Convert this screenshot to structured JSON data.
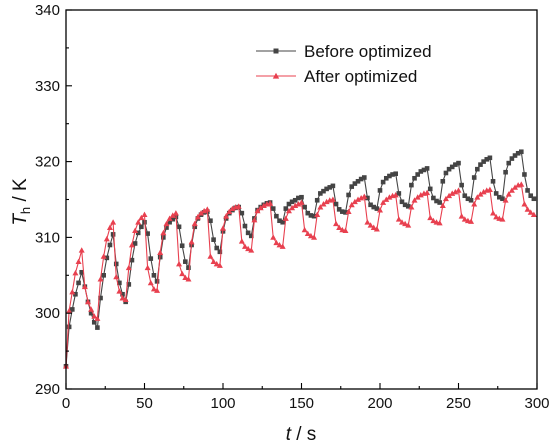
{
  "chart_data": {
    "type": "line",
    "xlabel": {
      "var": "t",
      "unit": " / s"
    },
    "ylabel": {
      "var": "T",
      "sub": "h",
      "unit": " / K"
    },
    "xlim": [
      0,
      300
    ],
    "ylim": [
      290,
      340
    ],
    "xticks": [
      0,
      50,
      100,
      150,
      200,
      250,
      300
    ],
    "yticks": [
      290,
      300,
      310,
      320,
      330,
      340
    ],
    "grid": false,
    "legend_position": "top-right",
    "series": [
      {
        "name": "Before optimized",
        "color": "#444444",
        "marker": "square",
        "x": [
          0,
          2,
          4,
          6,
          8,
          10,
          12,
          14,
          16,
          18,
          20,
          22,
          24,
          26,
          28,
          30,
          32,
          34,
          36,
          38,
          40,
          42,
          44,
          46,
          48,
          50,
          52,
          54,
          56,
          58,
          60,
          62,
          64,
          66,
          68,
          70,
          72,
          74,
          76,
          78,
          80,
          82,
          84,
          86,
          88,
          90,
          92,
          94,
          96,
          98,
          100,
          102,
          104,
          106,
          108,
          110,
          112,
          114,
          116,
          118,
          120,
          122,
          124,
          126,
          128,
          130,
          132,
          134,
          136,
          138,
          140,
          142,
          144,
          146,
          148,
          150,
          152,
          154,
          156,
          158,
          160,
          162,
          164,
          166,
          168,
          170,
          172,
          174,
          176,
          178,
          180,
          182,
          184,
          186,
          188,
          190,
          192,
          194,
          196,
          198,
          200,
          202,
          204,
          206,
          208,
          210,
          212,
          214,
          216,
          218,
          220,
          222,
          224,
          226,
          228,
          230,
          232,
          234,
          236,
          238,
          240,
          242,
          244,
          246,
          248,
          250,
          252,
          254,
          256,
          258,
          260,
          262,
          264,
          266,
          268,
          270,
          272,
          274,
          276,
          278,
          280,
          282,
          284,
          286,
          288,
          290,
          292,
          294,
          296,
          298
        ],
        "y": [
          293.0,
          298.2,
          300.5,
          302.5,
          304.0,
          305.4,
          303.5,
          301.5,
          300.0,
          298.8,
          298.1,
          302.0,
          305.0,
          307.3,
          309.0,
          310.4,
          306.5,
          304.0,
          302.5,
          301.5,
          303.8,
          307.0,
          309.2,
          310.6,
          311.4,
          312.0,
          310.5,
          307.2,
          305.0,
          304.2,
          307.4,
          310.0,
          311.3,
          312.0,
          312.4,
          312.7,
          311.4,
          308.9,
          306.8,
          306.0,
          309.0,
          311.4,
          312.5,
          313.0,
          313.3,
          313.4,
          312.2,
          309.7,
          308.6,
          308.1,
          310.8,
          312.5,
          313.2,
          313.6,
          313.9,
          314.0,
          313.2,
          311.5,
          310.6,
          310.2,
          312.5,
          313.6,
          314.0,
          314.3,
          314.5,
          314.6,
          313.8,
          312.8,
          312.2,
          312.0,
          313.8,
          314.4,
          314.7,
          314.9,
          315.2,
          315.3,
          314.0,
          313.2,
          312.9,
          312.8,
          314.9,
          315.8,
          316.1,
          316.4,
          316.6,
          316.8,
          314.4,
          313.7,
          313.4,
          313.3,
          315.6,
          316.7,
          317.1,
          317.4,
          317.7,
          317.9,
          315.2,
          314.3,
          314.0,
          313.8,
          316.2,
          317.3,
          317.8,
          318.1,
          318.3,
          318.4,
          315.8,
          314.7,
          314.3,
          314.1,
          316.9,
          317.8,
          318.3,
          318.7,
          318.9,
          319.1,
          316.4,
          315.2,
          314.8,
          314.6,
          317.4,
          318.5,
          319.0,
          319.3,
          319.6,
          319.8,
          316.9,
          315.5,
          315.1,
          314.9,
          317.9,
          319.0,
          319.6,
          320.0,
          320.3,
          320.5,
          317.4,
          315.8,
          315.3,
          315.1,
          318.6,
          319.8,
          320.4,
          320.8,
          321.1,
          321.3,
          318.3,
          316.2,
          315.5,
          315.1
        ]
      },
      {
        "name": "After optimized",
        "color": "#e8404f",
        "marker": "triangle",
        "x": [
          0,
          2,
          4,
          6,
          8,
          10,
          12,
          14,
          16,
          18,
          20,
          22,
          24,
          26,
          28,
          30,
          32,
          34,
          36,
          38,
          40,
          42,
          44,
          46,
          48,
          50,
          52,
          54,
          56,
          58,
          60,
          62,
          64,
          66,
          68,
          70,
          72,
          74,
          76,
          78,
          80,
          82,
          84,
          86,
          88,
          90,
          92,
          94,
          96,
          98,
          100,
          102,
          104,
          106,
          108,
          110,
          112,
          114,
          116,
          118,
          120,
          122,
          124,
          126,
          128,
          130,
          132,
          134,
          136,
          138,
          140,
          142,
          144,
          146,
          148,
          150,
          152,
          154,
          156,
          158,
          160,
          162,
          164,
          166,
          168,
          170,
          172,
          174,
          176,
          178,
          180,
          182,
          184,
          186,
          188,
          190,
          192,
          194,
          196,
          198,
          200,
          202,
          204,
          206,
          208,
          210,
          212,
          214,
          216,
          218,
          220,
          222,
          224,
          226,
          228,
          230,
          232,
          234,
          236,
          238,
          240,
          242,
          244,
          246,
          248,
          250,
          252,
          254,
          256,
          258,
          260,
          262,
          264,
          266,
          268,
          270,
          272,
          274,
          276,
          278,
          280,
          282,
          284,
          286,
          288,
          290,
          292,
          294,
          296,
          298
        ],
        "y": [
          293.0,
          300.3,
          302.8,
          305.3,
          306.8,
          308.3,
          303.5,
          301.5,
          300.5,
          299.6,
          299.3,
          304.5,
          307.5,
          309.8,
          311.3,
          312.0,
          304.8,
          302.9,
          302.0,
          301.8,
          306.0,
          309.0,
          310.9,
          312.0,
          312.6,
          313.0,
          306.0,
          304.0,
          303.2,
          303.0,
          308.0,
          310.6,
          311.8,
          312.5,
          312.9,
          313.2,
          306.5,
          305.2,
          304.7,
          304.5,
          309.4,
          311.8,
          312.7,
          313.2,
          313.5,
          313.7,
          307.5,
          306.8,
          306.5,
          306.3,
          311.2,
          312.8,
          313.4,
          313.8,
          314.0,
          314.1,
          309.5,
          308.8,
          308.5,
          308.3,
          312.3,
          313.5,
          313.9,
          314.2,
          314.4,
          314.5,
          310.0,
          309.3,
          309.0,
          308.8,
          312.5,
          313.5,
          313.9,
          314.2,
          314.4,
          314.6,
          311.0,
          310.5,
          310.2,
          310.0,
          313.0,
          314.0,
          314.4,
          314.7,
          314.9,
          315.0,
          311.8,
          311.3,
          311.0,
          310.9,
          313.4,
          314.3,
          314.7,
          315.0,
          315.2,
          315.4,
          312.0,
          311.6,
          311.3,
          311.1,
          313.6,
          314.6,
          315.0,
          315.3,
          315.5,
          315.6,
          312.4,
          312.0,
          311.8,
          311.6,
          314.0,
          314.9,
          315.3,
          315.6,
          315.8,
          315.9,
          312.6,
          312.2,
          312.0,
          311.9,
          314.2,
          315.1,
          315.5,
          315.8,
          316.0,
          316.2,
          312.8,
          312.4,
          312.2,
          312.1,
          314.4,
          315.3,
          315.7,
          316.0,
          316.2,
          316.3,
          313.2,
          312.7,
          312.5,
          312.4,
          314.9,
          315.7,
          316.2,
          316.6,
          316.9,
          317.0,
          314.4,
          313.7,
          313.3,
          313.0
        ]
      }
    ]
  }
}
